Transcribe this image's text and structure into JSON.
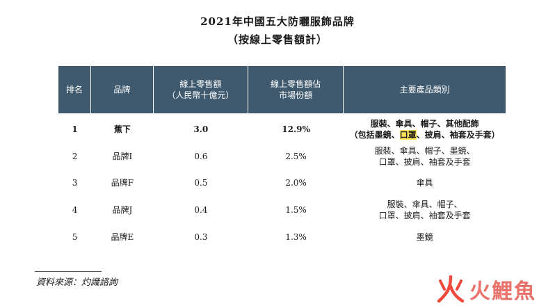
{
  "title": "2021年中國五大防曬服飾品牌",
  "subtitle": "（按線上零售額計）",
  "table": {
    "headers": {
      "rank": "排名",
      "brand": "品牌",
      "sales_line1": "線上零售額",
      "sales_line2": "（人民幣十億元）",
      "share_line1": "線上零售額佔",
      "share_line2": "市場份額",
      "category": "主要產品類別"
    },
    "rows": [
      {
        "rank": "1",
        "brand": "蕉下",
        "sales": "3.0",
        "share": "12.9%",
        "cat_line1": "服裝、傘具、帽子、其他配飾",
        "cat_line2_pre": "（包括墨鏡、",
        "cat_line2_hl": "口罩",
        "cat_line2_post": "、披肩、袖套及手套）"
      },
      {
        "rank": "2",
        "brand": "品牌I",
        "sales": "0.6",
        "share": "2.5%",
        "cat_line1": "服裝、傘具、帽子、墨鏡、",
        "cat_line2": "口罩、披肩、袖套及手套"
      },
      {
        "rank": "3",
        "brand": "品牌F",
        "sales": "0.5",
        "share": "2.0%",
        "cat_line1": "傘具"
      },
      {
        "rank": "4",
        "brand": "品牌J",
        "sales": "0.4",
        "share": "1.5%",
        "cat_line1": "服裝、傘具、帽子、",
        "cat_line2": "口罩、披肩、袖套及手套"
      },
      {
        "rank": "5",
        "brand": "品牌E",
        "sales": "0.3",
        "share": "1.3%",
        "cat_line1": "墨鏡"
      }
    ]
  },
  "source": "資料來源：灼識諮詢",
  "watermark": {
    "text": "火鯉魚",
    "colors": {
      "fire": "#f04a3c",
      "dot": "#f04a3c",
      "text": "#e8615a"
    }
  },
  "colors": {
    "header_bg": "#3f5a6e",
    "highlight": "#ffe25a"
  }
}
